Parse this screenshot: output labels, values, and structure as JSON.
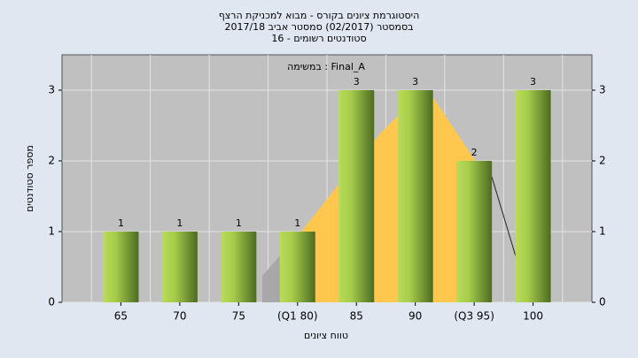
{
  "chart_data": {
    "type": "bar",
    "title": "היסטוגרמת ציונים בקורס - מבוא למכניקת הרצף",
    "subtitle": "בסמסטר  (02/2017)  סמסטר אביב 2017/18",
    "subtitle2": "סטודנטים רשומים - 16",
    "annotation": "במשימה : Final_A",
    "x_label": "טווח ציונים",
    "y_label": "מספר סטודנטים",
    "categories": [
      "65",
      "70",
      "75",
      "(Q1 80)",
      "85",
      "90",
      "(Q3 95)",
      "100"
    ],
    "values": [
      1,
      1,
      1,
      1,
      3,
      3,
      2,
      3
    ],
    "ylim": [
      0,
      3.5
    ],
    "yticks": [
      0,
      1,
      2,
      3
    ],
    "grid": true
  }
}
